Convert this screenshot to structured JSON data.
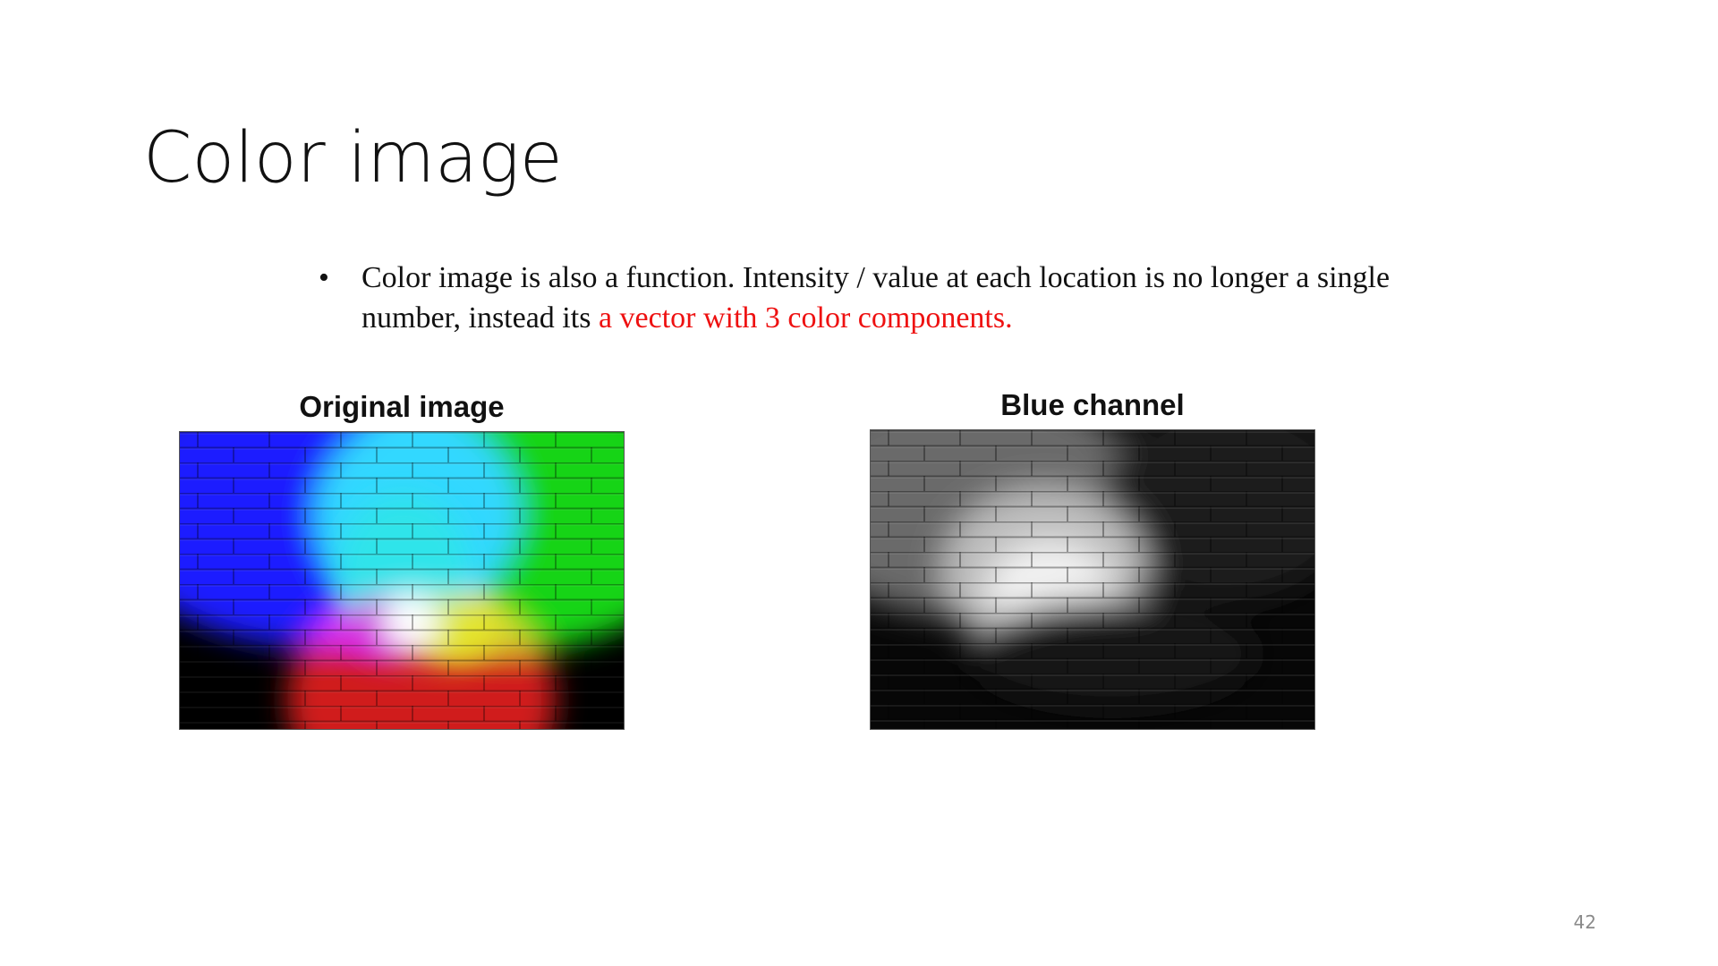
{
  "slide": {
    "title": "Color image",
    "bullet": {
      "text_plain": "Color image is also a function. Intensity / value at each location is no longer a single number, instead its ",
      "text_highlight": "a vector with 3 color components.",
      "highlight_color": "#ee1111"
    },
    "figures": [
      {
        "label": "Original image"
      },
      {
        "label": "Blue channel"
      }
    ],
    "page_number": "42"
  }
}
